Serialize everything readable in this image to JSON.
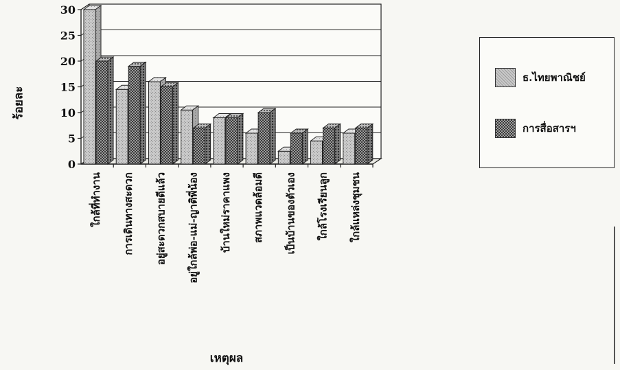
{
  "chart_data": {
    "type": "bar",
    "title": "",
    "xlabel": "เหตุผล",
    "ylabel": "ร้อยละ",
    "ylim": [
      0,
      30
    ],
    "yticks": [
      0,
      5,
      10,
      15,
      20,
      25,
      30
    ],
    "grid": true,
    "legend_position": "right",
    "categories": [
      "ใกล้ที่ทำงาน",
      "การเดินทางสะดวก",
      "อยู่สะดวกสบายดีแล้ว",
      "อยู่ใกล้พ่อ-แม่-ญาติพี่น้อง",
      "บ้านใหม่ราคาแพง",
      "สภาพแวดล้อมดี",
      "เป็นบ้านของตัวเอง",
      "ใกล้โรงเรียนลูก",
      "ใกล้แหล่งชุมชน"
    ],
    "series": [
      {
        "name": "ธ.ไทยพาณิชย์",
        "values": [
          30,
          14.5,
          16,
          10.5,
          9,
          6,
          2.5,
          4.5,
          6
        ],
        "color": "#b8b8b8"
      },
      {
        "name": "การสื่อสารฯ",
        "values": [
          20,
          19,
          15,
          7,
          9,
          10,
          6,
          7,
          7
        ],
        "color": "#6b6b6b"
      }
    ]
  }
}
